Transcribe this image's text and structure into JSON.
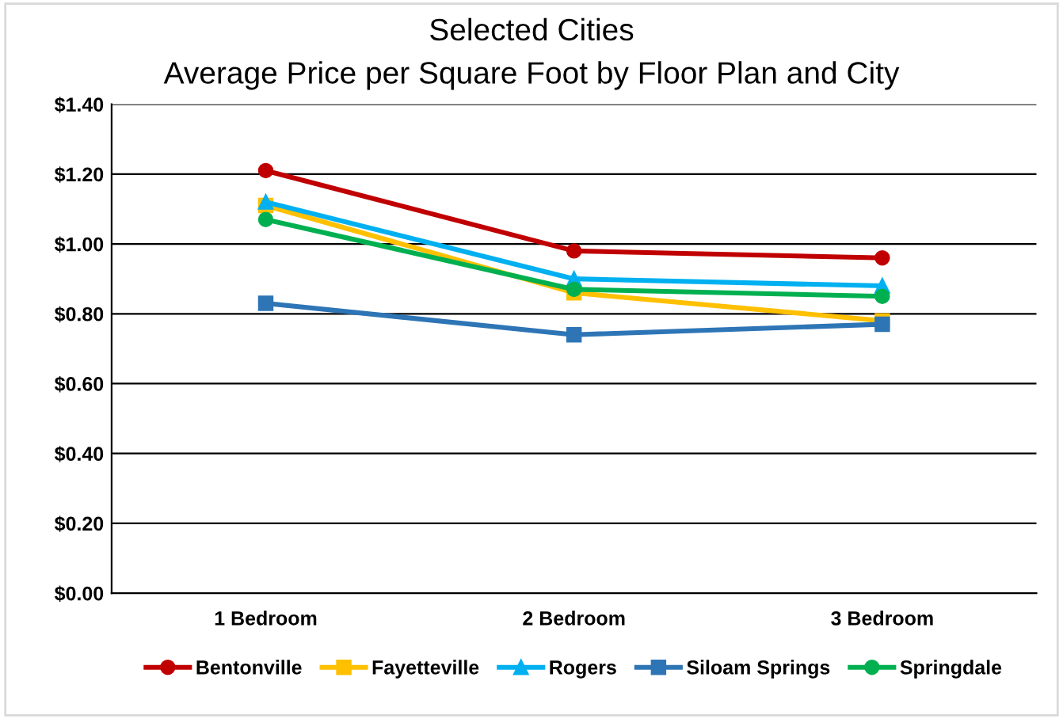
{
  "chart_data": {
    "type": "line",
    "title": "Selected Cities",
    "subtitle": "Average Price per Square Foot by Floor Plan and City",
    "categories": [
      "1 Bedroom",
      "2 Bedroom",
      "3 Bedroom"
    ],
    "series": [
      {
        "name": "Bentonville",
        "color": "#c00000",
        "marker": "circle",
        "values": [
          1.21,
          0.98,
          0.96
        ]
      },
      {
        "name": "Fayetteville",
        "color": "#ffc000",
        "marker": "square",
        "values": [
          1.11,
          0.86,
          0.78
        ]
      },
      {
        "name": "Rogers",
        "color": "#00b0f0",
        "marker": "triangle",
        "values": [
          1.12,
          0.9,
          0.88
        ]
      },
      {
        "name": "Siloam Springs",
        "color": "#2e75b6",
        "marker": "square",
        "values": [
          0.83,
          0.74,
          0.77
        ]
      },
      {
        "name": "Springdale",
        "color": "#00b050",
        "marker": "circle",
        "values": [
          1.07,
          0.87,
          0.85
        ]
      }
    ],
    "ylim": [
      0,
      1.4
    ],
    "yticks": [
      {
        "value": 0,
        "label": "$0.00"
      },
      {
        "value": 0.2,
        "label": "$0.20"
      },
      {
        "value": 0.4,
        "label": "$0.40"
      },
      {
        "value": 0.6,
        "label": "$0.60"
      },
      {
        "value": 0.8,
        "label": "$0.80"
      },
      {
        "value": 1.0,
        "label": "$1.00"
      },
      {
        "value": 1.2,
        "label": "$1.20"
      },
      {
        "value": 1.4,
        "label": "$1.40"
      }
    ],
    "grid": "y",
    "legend": "bottom",
    "line_style": "solid"
  }
}
